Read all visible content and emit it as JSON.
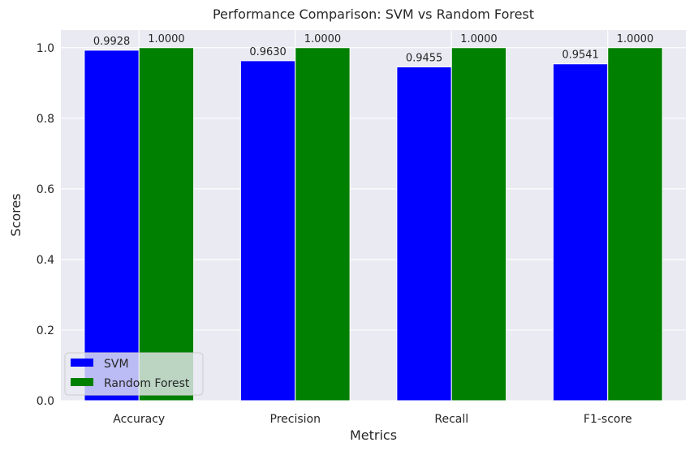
{
  "chart_data": {
    "type": "bar",
    "title": "Performance Comparison: SVM vs Random Forest",
    "xlabel": "Metrics",
    "ylabel": "Scores",
    "categories": [
      "Accuracy",
      "Precision",
      "Recall",
      "F1-score"
    ],
    "series": [
      {
        "name": "SVM",
        "color": "#0000ff",
        "values": [
          0.9928,
          0.963,
          0.9455,
          0.9541
        ],
        "labels": [
          "0.9928",
          "0.9630",
          "0.9455",
          "0.9541"
        ]
      },
      {
        "name": "Random Forest",
        "color": "#008000",
        "values": [
          1.0,
          1.0,
          1.0,
          1.0
        ],
        "labels": [
          "1.0000",
          "1.0000",
          "1.0000",
          "1.0000"
        ]
      }
    ],
    "ylim": [
      0,
      1.05
    ],
    "yticks": [
      0.0,
      0.2,
      0.4,
      0.6,
      0.8,
      1.0
    ],
    "ytick_labels": [
      "0.0",
      "0.2",
      "0.4",
      "0.6",
      "0.8",
      "1.0"
    ],
    "grid": true,
    "legend_position": "lower-left",
    "background_color": "#eaeaf2"
  }
}
